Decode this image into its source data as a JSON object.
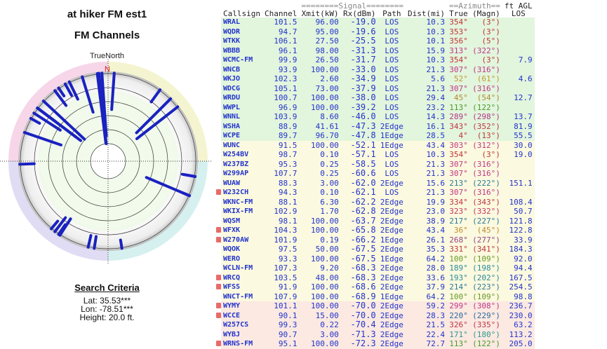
{
  "title": "at hiker FM est1",
  "subtitle": "FM Channels",
  "polar": {
    "north_label": "TrueNorth",
    "n_marker": "N"
  },
  "search": {
    "heading": "Search Criteria",
    "lat": "Lat: 35.53***",
    "lon": "Lon: -78.51***",
    "height": "Height: 20.0 ft."
  },
  "header": {
    "signal_group": "========Signal========",
    "azimuth_group": "==Azimuth==",
    "agl_group": "ft AGL",
    "cols": [
      "Callsign",
      "Channel",
      "Xmit(kW)",
      "Rx(dBm)",
      "Path",
      "Dist(mi)",
      "True",
      "(Magn)",
      "LOS"
    ]
  },
  "rows": [
    [
      "WRAL",
      "101.5",
      "96.00",
      "-19.0",
      "LOS",
      "10.3",
      "354°",
      "(3°)",
      "",
      "green",
      "#c03535",
      false
    ],
    [
      "WQDR",
      "94.7",
      "95.00",
      "-19.6",
      "LOS",
      "10.3",
      "353°",
      "(3°)",
      "",
      "green",
      "#c03535",
      false
    ],
    [
      "WTKK",
      "106.1",
      "27.50",
      "-25.5",
      "LOS",
      "10.1",
      "356°",
      "(5°)",
      "",
      "green",
      "#c03535",
      false
    ],
    [
      "WBBB",
      "96.1",
      "98.00",
      "-31.3",
      "LOS",
      "15.9",
      "313°",
      "(322°)",
      "",
      "green",
      "#c03585",
      false
    ],
    [
      "WCMC-FM",
      "99.9",
      "26.50",
      "-31.7",
      "LOS",
      "10.3",
      "354°",
      "(3°)",
      "7.9",
      "green",
      "#c03535",
      false
    ],
    [
      "WNCB",
      "93.9",
      "100.00",
      "-33.0",
      "LOS",
      "21.3",
      "307°",
      "(316°)",
      "",
      "green",
      "#c03585",
      false
    ],
    [
      "WKJO",
      "102.3",
      "2.60",
      "-34.9",
      "LOS",
      "5.6",
      "52°",
      "(61°)",
      "4.6",
      "green",
      "#c09a30",
      false
    ],
    [
      "WDCG",
      "105.1",
      "73.00",
      "-37.9",
      "LOS",
      "21.3",
      "307°",
      "(316°)",
      "",
      "green",
      "#c03585",
      false
    ],
    [
      "WRDU",
      "100.7",
      "100.00",
      "-38.0",
      "LOS",
      "29.4",
      "45°",
      "(54°)",
      "12.7",
      "green",
      "#b08a30",
      false
    ],
    [
      "WWPL",
      "96.9",
      "100.00",
      "-39.2",
      "LOS",
      "23.2",
      "113°",
      "(122°)",
      "",
      "green",
      "#4a9a2a",
      false
    ],
    [
      "WNNL",
      "103.9",
      "8.60",
      "-46.0",
      "LOS",
      "14.3",
      "289°",
      "(298°)",
      "13.7",
      "green",
      "#b03585",
      false
    ],
    [
      "WSHA",
      "88.9",
      "41.61",
      "-47.3",
      "2Edge",
      "16.1",
      "343°",
      "(352°)",
      "81.9",
      "green",
      "#c03545",
      false
    ],
    [
      "WCPE",
      "89.7",
      "96.70",
      "-47.8",
      "1Edge",
      "28.5",
      "4°",
      "(13°)",
      "55.5",
      "green",
      "#c03535",
      false
    ],
    [
      "WUNC",
      "91.5",
      "100.00",
      "-52.1",
      "1Edge",
      "43.4",
      "303°",
      "(312°)",
      "30.0",
      "yellow",
      "#c03585",
      false
    ],
    [
      "W254BV",
      "98.7",
      "0.10",
      "-57.1",
      "LOS",
      "10.3",
      "354°",
      "(3°)",
      "19.0",
      "yellow",
      "#c03535",
      false
    ],
    [
      "W237BZ",
      "95.3",
      "0.25",
      "-58.5",
      "LOS",
      "21.3",
      "307°",
      "(316°)",
      "",
      "yellow",
      "#c03585",
      false
    ],
    [
      "W299AP",
      "107.7",
      "0.25",
      "-60.6",
      "LOS",
      "21.3",
      "307°",
      "(316°)",
      "",
      "yellow",
      "#c03585",
      false
    ],
    [
      "WUAW",
      "88.3",
      "3.00",
      "-62.0",
      "2Edge",
      "15.6",
      "213°",
      "(222°)",
      "151.1",
      "yellow",
      "#2a7a9a",
      false
    ],
    [
      "W232CH",
      "94.3",
      "0.10",
      "-62.1",
      "LOS",
      "21.3",
      "307°",
      "(316°)",
      "",
      "yellow",
      "#c03585",
      true
    ],
    [
      "WKNC-FM",
      "88.1",
      "6.30",
      "-62.2",
      "2Edge",
      "19.9",
      "334°",
      "(343°)",
      "108.4",
      "yellow",
      "#c03545",
      false
    ],
    [
      "WKIX-FM",
      "102.9",
      "1.70",
      "-62.8",
      "2Edge",
      "23.0",
      "323°",
      "(332°)",
      "50.7",
      "yellow",
      "#c03560",
      false
    ],
    [
      "WQSM",
      "98.1",
      "100.00",
      "-63.7",
      "2Edge",
      "38.9",
      "217°",
      "(227°)",
      "121.8",
      "yellow",
      "#2a7a9a",
      false
    ],
    [
      "WFXK",
      "104.3",
      "100.00",
      "-65.8",
      "2Edge",
      "43.4",
      "36°",
      "(45°)",
      "122.8",
      "yellow",
      "#c08a30",
      true
    ],
    [
      "W270AW",
      "101.9",
      "0.19",
      "-66.2",
      "1Edge",
      "26.1",
      "268°",
      "(277°)",
      "33.9",
      "yellow",
      "#904580",
      true
    ],
    [
      "WQOK",
      "97.5",
      "50.00",
      "-67.5",
      "2Edge",
      "35.3",
      "331°",
      "(341°)",
      "184.3",
      "yellow",
      "#c03545",
      false
    ],
    [
      "WERO",
      "93.3",
      "100.00",
      "-67.5",
      "1Edge",
      "64.2",
      "100°",
      "(109°)",
      "92.0",
      "yellow",
      "#6a9a2a",
      false
    ],
    [
      "WCLN-FM",
      "107.3",
      "9.20",
      "-68.3",
      "2Edge",
      "28.0",
      "189°",
      "(198°)",
      "94.4",
      "yellow",
      "#2a8a9a",
      false
    ],
    [
      "WRCQ",
      "103.5",
      "48.00",
      "-68.3",
      "2Edge",
      "33.6",
      "193°",
      "(202°)",
      "167.5",
      "yellow",
      "#2a8a9a",
      true
    ],
    [
      "WFSS",
      "91.9",
      "100.00",
      "-68.6",
      "2Edge",
      "37.9",
      "214°",
      "(223°)",
      "254.5",
      "yellow",
      "#2a7a9a",
      true
    ],
    [
      "WNCT-FM",
      "107.9",
      "100.00",
      "-68.9",
      "1Edge",
      "64.2",
      "100°",
      "(109°)",
      "98.8",
      "yellow",
      "#6a9a2a",
      false
    ],
    [
      "WYMY",
      "101.1",
      "100.00",
      "-70.0",
      "2Edge",
      "59.2",
      "299°",
      "(308°)",
      "236.7",
      "pink",
      "#c03585",
      true
    ],
    [
      "WCCE",
      "90.1",
      "15.00",
      "-70.0",
      "2Edge",
      "28.3",
      "220°",
      "(229°)",
      "230.0",
      "pink",
      "#2a6a9a",
      true
    ],
    [
      "W257CS",
      "99.3",
      "0.22",
      "-70.4",
      "2Edge",
      "21.5",
      "326°",
      "(335°)",
      "63.2",
      "pink",
      "#c03545",
      false
    ],
    [
      "WYBJ",
      "90.7",
      "3.00",
      "-71.3",
      "2Edge",
      "22.4",
      "171°",
      "(180°)",
      "113.2",
      "pink",
      "#2a9a8a",
      false
    ],
    [
      "WRNS-FM",
      "95.1",
      "100.00",
      "-72.3",
      "2Edge",
      "72.7",
      "113°",
      "(122°)",
      "205.0",
      "pink",
      "#4a9a2a",
      true
    ]
  ]
}
